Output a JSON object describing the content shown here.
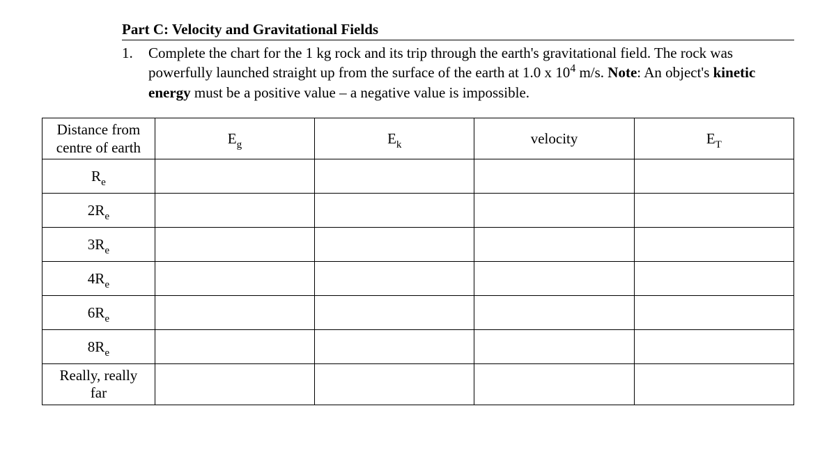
{
  "heading": {
    "part_title": "Part C: Velocity and Gravitational Fields",
    "q_number": "1.",
    "q_text_1": "Complete the chart for the 1 kg rock and its trip through the earth's gravitational field. The rock was powerfully launched straight up from the surface of the earth at 1.0 x 10",
    "q_exp": "4",
    "q_text_2": " m/s. ",
    "q_note_label": "Note",
    "q_text_3": ": An object's ",
    "q_bold_kinetic": "kinetic energy",
    "q_text_4": " must be a positive value – a negative value is impossible."
  },
  "table": {
    "columns": {
      "distance_label_1": "Distance from",
      "distance_label_2": "centre of earth",
      "Eg_main": "E",
      "Eg_sub": "g",
      "Ek_main": "E",
      "Ek_sub": "k",
      "velocity": "velocity",
      "ET_main": "E",
      "ET_sub": "T"
    },
    "rows": [
      {
        "dist_main": "R",
        "dist_sub": "e",
        "Eg": "",
        "Ek": "",
        "velocity": "",
        "ET": "",
        "tall": false
      },
      {
        "dist_main": "2R",
        "dist_sub": "e",
        "Eg": "",
        "Ek": "",
        "velocity": "",
        "ET": "",
        "tall": false
      },
      {
        "dist_main": "3R",
        "dist_sub": "e",
        "Eg": "",
        "Ek": "",
        "velocity": "",
        "ET": "",
        "tall": false
      },
      {
        "dist_main": "4R",
        "dist_sub": "e",
        "Eg": "",
        "Ek": "",
        "velocity": "",
        "ET": "",
        "tall": false
      },
      {
        "dist_main": "6R",
        "dist_sub": "e",
        "Eg": "",
        "Ek": "",
        "velocity": "",
        "ET": "",
        "tall": false
      },
      {
        "dist_main": "8R",
        "dist_sub": "e",
        "Eg": "",
        "Ek": "",
        "velocity": "",
        "ET": "",
        "tall": false
      }
    ],
    "last_row": {
      "dist_line1": "Really, really",
      "dist_line2": "far",
      "Eg": "",
      "Ek": "",
      "velocity": "",
      "ET": ""
    },
    "col_widths_pct": [
      15,
      21.25,
      21.25,
      21.25,
      21.25
    ],
    "border_color": "#000000",
    "background_color": "#ffffff",
    "font_family": "Times New Roman",
    "font_size_pt": 16
  }
}
